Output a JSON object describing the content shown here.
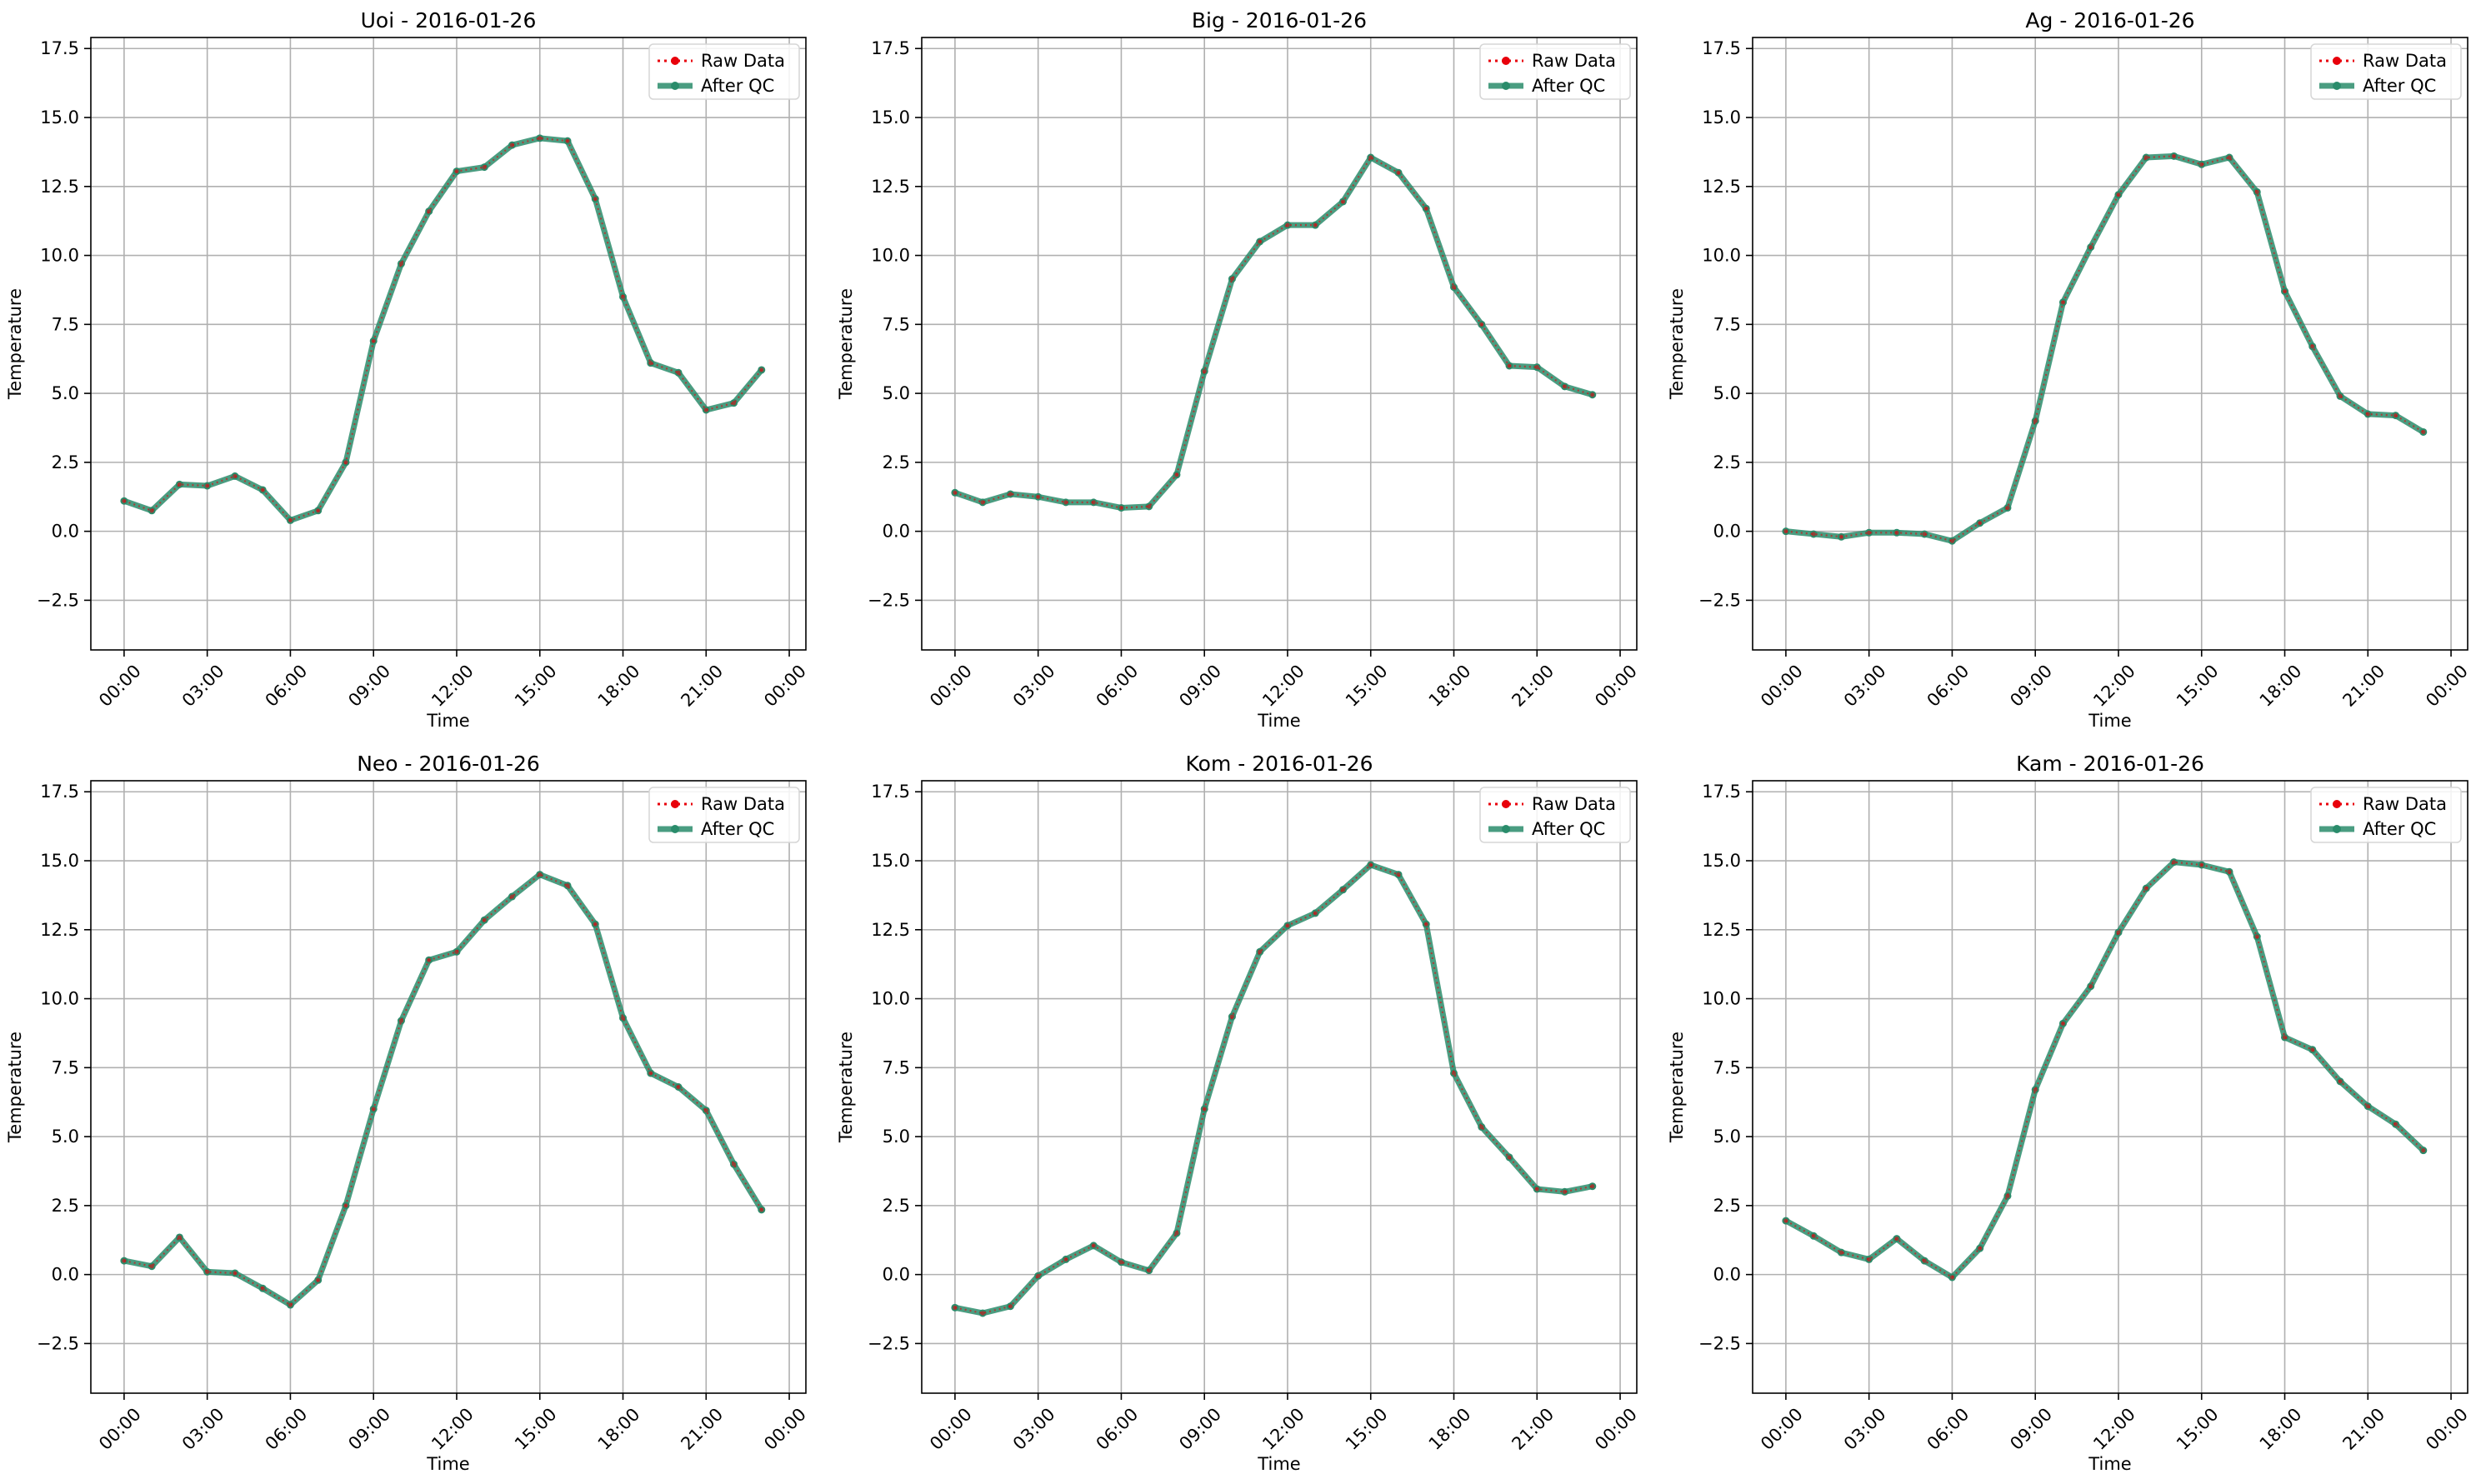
{
  "figure": {
    "shared_xlabel": "Time",
    "shared_ylabel": "Temperature",
    "legend": {
      "placement": "upper right",
      "raw_label": "Raw Data",
      "qc_label": "After QC"
    },
    "colors": {
      "raw": "#e8000b",
      "qc": "#2a8c6b",
      "grid": "#b0b0b0",
      "axes": "#000000"
    }
  },
  "chart_data": [
    {
      "type": "line",
      "title": "Uoi - 2016-01-26",
      "xlabel": "Time",
      "ylabel": "Temperature",
      "x": [
        "00:00",
        "01:00",
        "02:00",
        "03:00",
        "04:00",
        "05:00",
        "06:00",
        "07:00",
        "08:00",
        "09:00",
        "10:00",
        "11:00",
        "12:00",
        "13:00",
        "14:00",
        "15:00",
        "16:00",
        "17:00",
        "18:00",
        "19:00",
        "20:00",
        "21:00",
        "22:00",
        "23:00"
      ],
      "xticks": [
        "00:00",
        "03:00",
        "06:00",
        "09:00",
        "12:00",
        "15:00",
        "18:00",
        "21:00",
        "00:00"
      ],
      "yticks": [
        "−2.5",
        "0.0",
        "2.5",
        "5.0",
        "7.5",
        "10.0",
        "12.5",
        "15.0",
        "17.5"
      ],
      "ylim": [
        -4.3,
        17.9
      ],
      "grid": true,
      "legend_position": "top-right",
      "series": [
        {
          "name": "Raw Data",
          "values": [
            1.1,
            0.75,
            1.7,
            1.65,
            2.0,
            1.5,
            0.4,
            0.75,
            2.5,
            6.9,
            9.7,
            11.6,
            13.05,
            13.2,
            14.0,
            14.25,
            14.15,
            12.05,
            8.5,
            6.1,
            5.75,
            4.4,
            4.65,
            5.85
          ]
        },
        {
          "name": "After QC",
          "values": [
            1.1,
            0.75,
            1.7,
            1.65,
            2.0,
            1.5,
            0.4,
            0.75,
            2.5,
            6.9,
            9.7,
            11.6,
            13.05,
            13.2,
            14.0,
            14.25,
            14.15,
            12.05,
            8.5,
            6.1,
            5.75,
            4.4,
            4.65,
            5.85
          ]
        }
      ]
    },
    {
      "type": "line",
      "title": "Big - 2016-01-26",
      "xlabel": "Time",
      "ylabel": "Temperature",
      "x": [
        "00:00",
        "01:00",
        "02:00",
        "03:00",
        "04:00",
        "05:00",
        "06:00",
        "07:00",
        "08:00",
        "09:00",
        "10:00",
        "11:00",
        "12:00",
        "13:00",
        "14:00",
        "15:00",
        "16:00",
        "17:00",
        "18:00",
        "19:00",
        "20:00",
        "21:00",
        "22:00",
        "23:00"
      ],
      "xticks": [
        "00:00",
        "03:00",
        "06:00",
        "09:00",
        "12:00",
        "15:00",
        "18:00",
        "21:00",
        "00:00"
      ],
      "yticks": [
        "−2.5",
        "0.0",
        "2.5",
        "5.0",
        "7.5",
        "10.0",
        "12.5",
        "15.0",
        "17.5"
      ],
      "ylim": [
        -4.3,
        17.9
      ],
      "grid": true,
      "legend_position": "top-right",
      "series": [
        {
          "name": "Raw Data",
          "values": [
            1.4,
            1.05,
            1.35,
            1.25,
            1.05,
            1.05,
            0.85,
            0.9,
            2.05,
            5.8,
            9.15,
            10.5,
            11.1,
            11.1,
            11.95,
            13.55,
            13.0,
            11.7,
            8.85,
            7.5,
            6.0,
            5.95,
            5.25,
            4.95
          ]
        },
        {
          "name": "After QC",
          "values": [
            1.4,
            1.05,
            1.35,
            1.25,
            1.05,
            1.05,
            0.85,
            0.9,
            2.05,
            5.8,
            9.15,
            10.5,
            11.1,
            11.1,
            11.95,
            13.55,
            13.0,
            11.7,
            8.85,
            7.5,
            6.0,
            5.95,
            5.25,
            4.95
          ]
        }
      ]
    },
    {
      "type": "line",
      "title": "Ag - 2016-01-26",
      "xlabel": "Time",
      "ylabel": "Temperature",
      "x": [
        "00:00",
        "01:00",
        "02:00",
        "03:00",
        "04:00",
        "05:00",
        "06:00",
        "07:00",
        "08:00",
        "09:00",
        "10:00",
        "11:00",
        "12:00",
        "13:00",
        "14:00",
        "15:00",
        "16:00",
        "17:00",
        "18:00",
        "19:00",
        "20:00",
        "21:00",
        "22:00",
        "23:00"
      ],
      "xticks": [
        "00:00",
        "03:00",
        "06:00",
        "09:00",
        "12:00",
        "15:00",
        "18:00",
        "21:00",
        "00:00"
      ],
      "yticks": [
        "−2.5",
        "0.0",
        "2.5",
        "5.0",
        "7.5",
        "10.0",
        "12.5",
        "15.0",
        "17.5"
      ],
      "ylim": [
        -4.3,
        17.9
      ],
      "grid": true,
      "legend_position": "top-right",
      "series": [
        {
          "name": "Raw Data",
          "values": [
            0.0,
            -0.1,
            -0.2,
            -0.05,
            -0.05,
            -0.1,
            -0.35,
            0.3,
            0.85,
            4.0,
            8.3,
            10.3,
            12.2,
            13.55,
            13.6,
            13.3,
            13.55,
            12.3,
            8.7,
            6.7,
            4.9,
            4.25,
            4.2,
            3.6
          ]
        },
        {
          "name": "After QC",
          "values": [
            0.0,
            -0.1,
            -0.2,
            -0.05,
            -0.05,
            -0.1,
            -0.35,
            0.3,
            0.85,
            4.0,
            8.3,
            10.3,
            12.2,
            13.55,
            13.6,
            13.3,
            13.55,
            12.3,
            8.7,
            6.7,
            4.9,
            4.25,
            4.2,
            3.6
          ]
        }
      ]
    },
    {
      "type": "line",
      "title": "Neo - 2016-01-26",
      "xlabel": "Time",
      "ylabel": "Temperature",
      "x": [
        "00:00",
        "01:00",
        "02:00",
        "03:00",
        "04:00",
        "05:00",
        "06:00",
        "07:00",
        "08:00",
        "09:00",
        "10:00",
        "11:00",
        "12:00",
        "13:00",
        "14:00",
        "15:00",
        "16:00",
        "17:00",
        "18:00",
        "19:00",
        "20:00",
        "21:00",
        "22:00",
        "23:00"
      ],
      "xticks": [
        "00:00",
        "03:00",
        "06:00",
        "09:00",
        "12:00",
        "15:00",
        "18:00",
        "21:00",
        "00:00"
      ],
      "yticks": [
        "−2.5",
        "0.0",
        "2.5",
        "5.0",
        "7.5",
        "10.0",
        "12.5",
        "15.0",
        "17.5"
      ],
      "ylim": [
        -4.3,
        17.9
      ],
      "grid": true,
      "legend_position": "top-right",
      "series": [
        {
          "name": "Raw Data",
          "values": [
            0.5,
            0.3,
            1.35,
            0.1,
            0.05,
            -0.5,
            -1.1,
            -0.2,
            2.5,
            6.0,
            9.2,
            11.4,
            11.7,
            12.85,
            13.7,
            14.5,
            14.1,
            12.7,
            9.3,
            7.3,
            6.8,
            5.95,
            4.0,
            2.35
          ]
        },
        {
          "name": "After QC",
          "values": [
            0.5,
            0.3,
            1.35,
            0.1,
            0.05,
            -0.5,
            -1.1,
            -0.2,
            2.5,
            6.0,
            9.2,
            11.4,
            11.7,
            12.85,
            13.7,
            14.5,
            14.1,
            12.7,
            9.3,
            7.3,
            6.8,
            5.95,
            4.0,
            2.35
          ]
        }
      ]
    },
    {
      "type": "line",
      "title": "Kom - 2016-01-26",
      "xlabel": "Time",
      "ylabel": "Temperature",
      "x": [
        "00:00",
        "01:00",
        "02:00",
        "03:00",
        "04:00",
        "05:00",
        "06:00",
        "07:00",
        "08:00",
        "09:00",
        "10:00",
        "11:00",
        "12:00",
        "13:00",
        "14:00",
        "15:00",
        "16:00",
        "17:00",
        "18:00",
        "19:00",
        "20:00",
        "21:00",
        "22:00",
        "23:00"
      ],
      "xticks": [
        "00:00",
        "03:00",
        "06:00",
        "09:00",
        "12:00",
        "15:00",
        "18:00",
        "21:00",
        "00:00"
      ],
      "yticks": [
        "−2.5",
        "0.0",
        "2.5",
        "5.0",
        "7.5",
        "10.0",
        "12.5",
        "15.0",
        "17.5"
      ],
      "ylim": [
        -4.3,
        17.9
      ],
      "grid": true,
      "legend_position": "top-right",
      "series": [
        {
          "name": "Raw Data",
          "values": [
            -1.2,
            -1.4,
            -1.15,
            -0.05,
            0.55,
            1.05,
            0.45,
            0.15,
            1.5,
            6.0,
            9.35,
            11.7,
            12.65,
            13.1,
            13.95,
            14.85,
            14.5,
            12.7,
            7.3,
            5.35,
            4.25,
            3.1,
            3.0,
            3.2
          ]
        },
        {
          "name": "After QC",
          "values": [
            -1.2,
            -1.4,
            -1.15,
            -0.05,
            0.55,
            1.05,
            0.45,
            0.15,
            1.5,
            6.0,
            9.35,
            11.7,
            12.65,
            13.1,
            13.95,
            14.85,
            14.5,
            12.7,
            7.3,
            5.35,
            4.25,
            3.1,
            3.0,
            3.2
          ]
        }
      ]
    },
    {
      "type": "line",
      "title": "Kam - 2016-01-26",
      "xlabel": "Time",
      "ylabel": "Temperature",
      "x": [
        "00:00",
        "01:00",
        "02:00",
        "03:00",
        "04:00",
        "05:00",
        "06:00",
        "07:00",
        "08:00",
        "09:00",
        "10:00",
        "11:00",
        "12:00",
        "13:00",
        "14:00",
        "15:00",
        "16:00",
        "17:00",
        "18:00",
        "19:00",
        "20:00",
        "21:00",
        "22:00",
        "23:00"
      ],
      "xticks": [
        "00:00",
        "03:00",
        "06:00",
        "09:00",
        "12:00",
        "15:00",
        "18:00",
        "21:00",
        "00:00"
      ],
      "yticks": [
        "−2.5",
        "0.0",
        "2.5",
        "5.0",
        "7.5",
        "10.0",
        "12.5",
        "15.0",
        "17.5"
      ],
      "ylim": [
        -4.3,
        17.9
      ],
      "grid": true,
      "legend_position": "top-right",
      "series": [
        {
          "name": "Raw Data",
          "values": [
            1.95,
            1.4,
            0.8,
            0.55,
            1.3,
            0.5,
            -0.1,
            0.95,
            2.85,
            6.7,
            9.1,
            10.45,
            12.4,
            14.0,
            14.95,
            14.85,
            14.6,
            12.25,
            8.6,
            8.15,
            7.0,
            6.1,
            5.45,
            4.5
          ]
        },
        {
          "name": "After QC",
          "values": [
            1.95,
            1.4,
            0.8,
            0.55,
            1.3,
            0.5,
            -0.1,
            0.95,
            2.85,
            6.7,
            9.1,
            10.45,
            12.4,
            14.0,
            14.95,
            14.85,
            14.6,
            12.25,
            8.6,
            8.15,
            7.0,
            6.1,
            5.45,
            4.5
          ]
        }
      ]
    }
  ]
}
